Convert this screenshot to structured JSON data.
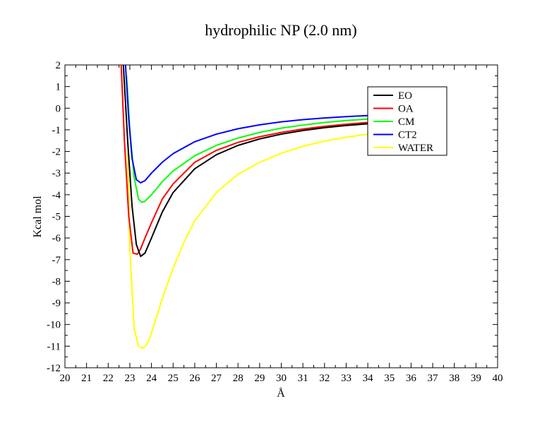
{
  "chart_data": {
    "type": "line",
    "title": "hydrophilic NP (2.0 nm)",
    "xlabel": "Å",
    "ylabel": "Kcal mol",
    "xlim": [
      20,
      40
    ],
    "ylim": [
      -12,
      2
    ],
    "xticks": [
      "20",
      "21",
      "22",
      "23",
      "24",
      "25",
      "26",
      "27",
      "28",
      "29",
      "30",
      "31",
      "32",
      "33",
      "34",
      "35",
      "36",
      "37",
      "38",
      "39",
      "40"
    ],
    "yticks": [
      "2",
      "1",
      "0",
      "-1",
      "-2",
      "-3",
      "-4",
      "-5",
      "-6",
      "-7",
      "-8",
      "-9",
      "-10",
      "-11",
      "-12"
    ],
    "grid": false,
    "legend_position": "top-right",
    "series": [
      {
        "name": "EO",
        "color": "#000000",
        "x": [
          22.7,
          22.9,
          23.1,
          23.3,
          23.5,
          23.7,
          24.0,
          24.5,
          25.0,
          26.0,
          27.0,
          28.0,
          29.0,
          30.0,
          31.0,
          32.0,
          33.0,
          34.0,
          35.0
        ],
        "y": [
          2.0,
          -1.5,
          -4.5,
          -6.3,
          -6.85,
          -6.7,
          -6.0,
          -4.8,
          -3.9,
          -2.8,
          -2.15,
          -1.72,
          -1.42,
          -1.2,
          -1.03,
          -0.9,
          -0.8,
          -0.72,
          -0.65
        ]
      },
      {
        "name": "OA",
        "color": "#ff0000",
        "x": [
          22.6,
          22.75,
          22.95,
          23.15,
          23.35,
          23.5,
          23.7,
          24.0,
          24.5,
          25.0,
          26.0,
          27.0,
          28.0,
          29.0,
          30.0,
          31.0,
          32.0,
          33.0,
          34.0,
          35.0
        ],
        "y": [
          2.0,
          -1.5,
          -5.0,
          -6.7,
          -6.75,
          -6.5,
          -6.0,
          -5.3,
          -4.2,
          -3.5,
          -2.5,
          -1.95,
          -1.58,
          -1.32,
          -1.12,
          -0.96,
          -0.84,
          -0.74,
          -0.66,
          -0.6
        ]
      },
      {
        "name": "CM",
        "color": "#00ff00",
        "x": [
          22.85,
          23.0,
          23.2,
          23.4,
          23.55,
          23.7,
          24.0,
          24.5,
          25.0,
          26.0,
          27.0,
          28.0,
          29.0,
          30.0,
          31.0,
          32.0,
          33.0,
          34.0,
          35.0
        ],
        "y": [
          1.5,
          -1.0,
          -3.2,
          -4.2,
          -4.35,
          -4.3,
          -4.0,
          -3.4,
          -2.9,
          -2.2,
          -1.72,
          -1.38,
          -1.12,
          -0.92,
          -0.78,
          -0.66,
          -0.57,
          -0.5,
          -0.44
        ]
      },
      {
        "name": "CT2",
        "color": "#0000ff",
        "x": [
          22.8,
          22.95,
          23.1,
          23.3,
          23.5,
          23.7,
          24.0,
          24.5,
          25.0,
          26.0,
          27.0,
          28.0,
          29.0,
          30.0,
          31.0,
          32.0,
          33.0,
          34.0,
          35.0
        ],
        "y": [
          2.0,
          -0.5,
          -2.3,
          -3.3,
          -3.45,
          -3.35,
          -3.0,
          -2.5,
          -2.1,
          -1.55,
          -1.2,
          -0.95,
          -0.77,
          -0.63,
          -0.53,
          -0.45,
          -0.39,
          -0.34,
          -0.3
        ]
      },
      {
        "name": "WATER",
        "color": "#ffff00",
        "x": [
          22.9,
          23.0,
          23.2,
          23.4,
          23.6,
          23.8,
          24.0,
          24.5,
          25.0,
          25.5,
          26.0,
          27.0,
          28.0,
          29.0,
          30.0,
          31.0,
          32.0,
          33.0,
          34.0,
          35.0
        ],
        "y": [
          -2.0,
          -6.5,
          -10.2,
          -11.0,
          -11.1,
          -10.9,
          -10.4,
          -8.8,
          -7.4,
          -6.2,
          -5.2,
          -3.9,
          -3.05,
          -2.5,
          -2.08,
          -1.76,
          -1.52,
          -1.34,
          -1.2,
          -1.08
        ]
      }
    ]
  }
}
